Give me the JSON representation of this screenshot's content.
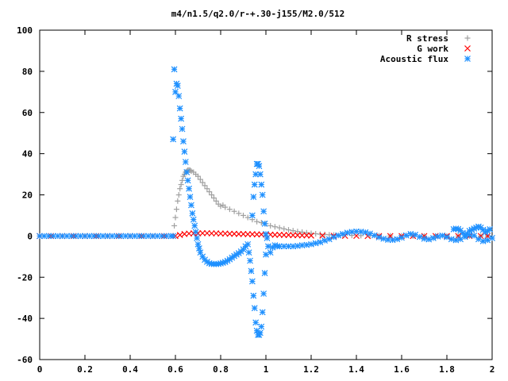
{
  "chart_data": {
    "type": "scatter",
    "title": "m4/n1.5/q2.0/r-+.30-j155/M2.0/512",
    "xlabel": "",
    "ylabel": "",
    "xlim": [
      0,
      2
    ],
    "ylim": [
      -60,
      100
    ],
    "xticks": [
      "0",
      "0.2",
      "0.4",
      "0.6",
      "0.8",
      "1",
      "1.2",
      "1.4",
      "1.6",
      "1.8",
      "2"
    ],
    "yticks": [
      "100",
      "80",
      "60",
      "40",
      "20",
      "0",
      "-20",
      "-40",
      "-60"
    ],
    "grid": false,
    "legend_position": "top-right",
    "series": [
      {
        "name": "R stress",
        "color": "#a0a0a0",
        "marker": "plus",
        "points": [
          [
            0.0,
            0
          ],
          [
            0.05,
            0
          ],
          [
            0.1,
            0
          ],
          [
            0.15,
            0
          ],
          [
            0.2,
            0
          ],
          [
            0.25,
            0
          ],
          [
            0.3,
            0
          ],
          [
            0.35,
            0
          ],
          [
            0.4,
            0
          ],
          [
            0.45,
            0
          ],
          [
            0.5,
            0
          ],
          [
            0.55,
            0
          ],
          [
            0.59,
            0
          ],
          [
            0.595,
            5
          ],
          [
            0.6,
            9
          ],
          [
            0.605,
            13
          ],
          [
            0.61,
            17
          ],
          [
            0.615,
            20
          ],
          [
            0.62,
            23
          ],
          [
            0.625,
            25
          ],
          [
            0.63,
            27
          ],
          [
            0.635,
            29
          ],
          [
            0.64,
            30
          ],
          [
            0.645,
            31
          ],
          [
            0.65,
            31.5
          ],
          [
            0.655,
            32
          ],
          [
            0.66,
            32
          ],
          [
            0.665,
            32
          ],
          [
            0.67,
            31.5
          ],
          [
            0.68,
            31
          ],
          [
            0.69,
            30
          ],
          [
            0.7,
            29
          ],
          [
            0.71,
            27.5
          ],
          [
            0.72,
            26
          ],
          [
            0.73,
            24.5
          ],
          [
            0.74,
            23
          ],
          [
            0.75,
            21.5
          ],
          [
            0.76,
            20
          ],
          [
            0.77,
            18.5
          ],
          [
            0.78,
            17
          ],
          [
            0.79,
            15.5
          ],
          [
            0.8,
            14.5
          ],
          [
            0.81,
            15
          ],
          [
            0.82,
            14
          ],
          [
            0.84,
            13
          ],
          [
            0.86,
            12
          ],
          [
            0.88,
            11
          ],
          [
            0.9,
            10
          ],
          [
            0.92,
            9
          ],
          [
            0.94,
            8
          ],
          [
            0.96,
            7
          ],
          [
            0.98,
            6.5
          ],
          [
            1.0,
            6
          ],
          [
            1.02,
            5
          ],
          [
            1.04,
            4.5
          ],
          [
            1.06,
            4
          ],
          [
            1.08,
            3.5
          ],
          [
            1.1,
            3
          ],
          [
            1.12,
            2.6
          ],
          [
            1.14,
            2.2
          ],
          [
            1.16,
            1.9
          ],
          [
            1.18,
            1.6
          ],
          [
            1.2,
            1.3
          ],
          [
            1.22,
            1.1
          ],
          [
            1.24,
            0.9
          ],
          [
            1.26,
            0.8
          ],
          [
            1.28,
            0.6
          ],
          [
            1.3,
            0.5
          ],
          [
            1.34,
            0.4
          ],
          [
            1.38,
            0.3
          ],
          [
            1.42,
            0.2
          ],
          [
            1.46,
            0.2
          ],
          [
            1.5,
            0.1
          ],
          [
            1.55,
            0.1
          ],
          [
            1.6,
            0.1
          ],
          [
            1.65,
            0
          ],
          [
            1.7,
            0
          ],
          [
            1.75,
            0
          ],
          [
            1.8,
            0
          ],
          [
            1.85,
            0
          ],
          [
            1.9,
            0
          ],
          [
            1.95,
            0
          ],
          [
            1.98,
            0
          ]
        ]
      },
      {
        "name": "G work",
        "color": "#ff0000",
        "marker": "cross",
        "points": [
          [
            0.0,
            0
          ],
          [
            0.05,
            0
          ],
          [
            0.1,
            0
          ],
          [
            0.15,
            0
          ],
          [
            0.2,
            0
          ],
          [
            0.25,
            0
          ],
          [
            0.3,
            0
          ],
          [
            0.35,
            0
          ],
          [
            0.4,
            0
          ],
          [
            0.45,
            0
          ],
          [
            0.5,
            0
          ],
          [
            0.55,
            0
          ],
          [
            0.6,
            0
          ],
          [
            0.62,
            0.5
          ],
          [
            0.64,
            1
          ],
          [
            0.66,
            1.2
          ],
          [
            0.68,
            1.3
          ],
          [
            0.7,
            1.3
          ],
          [
            0.72,
            1.4
          ],
          [
            0.74,
            1.4
          ],
          [
            0.76,
            1.3
          ],
          [
            0.78,
            1.3
          ],
          [
            0.8,
            1.2
          ],
          [
            0.82,
            1.2
          ],
          [
            0.84,
            1.1
          ],
          [
            0.86,
            1.1
          ],
          [
            0.88,
            1.0
          ],
          [
            0.9,
            1.0
          ],
          [
            0.92,
            0.9
          ],
          [
            0.94,
            0.9
          ],
          [
            0.96,
            0.8
          ],
          [
            0.98,
            0.8
          ],
          [
            1.0,
            0.7
          ],
          [
            1.02,
            0.7
          ],
          [
            1.04,
            0.6
          ],
          [
            1.06,
            0.6
          ],
          [
            1.08,
            0.5
          ],
          [
            1.1,
            0.5
          ],
          [
            1.12,
            0.4
          ],
          [
            1.14,
            0.4
          ],
          [
            1.16,
            0.3
          ],
          [
            1.18,
            0.3
          ],
          [
            1.2,
            0.2
          ],
          [
            1.25,
            0.2
          ],
          [
            1.3,
            0.1
          ],
          [
            1.35,
            0.1
          ],
          [
            1.4,
            0.1
          ],
          [
            1.45,
            0
          ],
          [
            1.5,
            0
          ],
          [
            1.55,
            0
          ],
          [
            1.6,
            0
          ],
          [
            1.65,
            0
          ],
          [
            1.7,
            0
          ],
          [
            1.75,
            0
          ],
          [
            1.8,
            0
          ],
          [
            1.85,
            0
          ],
          [
            1.9,
            0
          ],
          [
            1.95,
            0
          ],
          [
            1.98,
            0
          ]
        ]
      },
      {
        "name": "Acoustic flux",
        "color": "#1e90ff",
        "marker": "star",
        "points": [
          [
            0.0,
            0
          ],
          [
            0.02,
            0
          ],
          [
            0.04,
            0
          ],
          [
            0.06,
            0
          ],
          [
            0.08,
            0
          ],
          [
            0.1,
            0
          ],
          [
            0.12,
            0
          ],
          [
            0.14,
            0
          ],
          [
            0.16,
            0
          ],
          [
            0.18,
            0
          ],
          [
            0.2,
            0
          ],
          [
            0.22,
            0
          ],
          [
            0.24,
            0
          ],
          [
            0.26,
            0
          ],
          [
            0.28,
            0
          ],
          [
            0.3,
            0
          ],
          [
            0.32,
            0
          ],
          [
            0.34,
            0
          ],
          [
            0.36,
            0
          ],
          [
            0.38,
            0
          ],
          [
            0.4,
            0
          ],
          [
            0.42,
            0
          ],
          [
            0.44,
            0
          ],
          [
            0.46,
            0
          ],
          [
            0.48,
            0
          ],
          [
            0.5,
            0
          ],
          [
            0.52,
            0
          ],
          [
            0.54,
            0
          ],
          [
            0.56,
            0
          ],
          [
            0.58,
            0
          ],
          [
            0.59,
            0
          ],
          [
            0.59,
            47
          ],
          [
            0.595,
            81
          ],
          [
            0.6,
            70
          ],
          [
            0.605,
            74
          ],
          [
            0.61,
            73
          ],
          [
            0.615,
            68
          ],
          [
            0.62,
            62
          ],
          [
            0.625,
            57
          ],
          [
            0.63,
            52
          ],
          [
            0.635,
            46
          ],
          [
            0.64,
            41
          ],
          [
            0.645,
            36
          ],
          [
            0.65,
            31
          ],
          [
            0.655,
            27
          ],
          [
            0.66,
            23
          ],
          [
            0.665,
            19
          ],
          [
            0.67,
            15
          ],
          [
            0.675,
            11
          ],
          [
            0.68,
            8
          ],
          [
            0.685,
            5
          ],
          [
            0.69,
            2
          ],
          [
            0.695,
            -1
          ],
          [
            0.7,
            -4
          ],
          [
            0.705,
            -6
          ],
          [
            0.71,
            -8
          ],
          [
            0.72,
            -10
          ],
          [
            0.73,
            -11.5
          ],
          [
            0.74,
            -12.5
          ],
          [
            0.75,
            -13.2
          ],
          [
            0.76,
            -13.5
          ],
          [
            0.77,
            -13.6
          ],
          [
            0.78,
            -13.6
          ],
          [
            0.79,
            -13.5
          ],
          [
            0.8,
            -13.3
          ],
          [
            0.81,
            -13
          ],
          [
            0.82,
            -12.6
          ],
          [
            0.83,
            -12
          ],
          [
            0.84,
            -11.3
          ],
          [
            0.85,
            -10.5
          ],
          [
            0.86,
            -9.7
          ],
          [
            0.87,
            -9
          ],
          [
            0.88,
            -8.3
          ],
          [
            0.89,
            -7.5
          ],
          [
            0.9,
            -6.5
          ],
          [
            0.91,
            -5
          ],
          [
            0.92,
            -4
          ],
          [
            0.925,
            -8
          ],
          [
            0.93,
            -12
          ],
          [
            0.935,
            -17
          ],
          [
            0.94,
            -22
          ],
          [
            0.945,
            -29
          ],
          [
            0.95,
            -35
          ],
          [
            0.955,
            -42
          ],
          [
            0.96,
            -46
          ],
          [
            0.965,
            -48
          ],
          [
            0.97,
            -48
          ],
          [
            0.975,
            -47
          ],
          [
            0.98,
            -44
          ],
          [
            0.985,
            -37
          ],
          [
            0.99,
            -28
          ],
          [
            0.995,
            -18
          ],
          [
            1.0,
            -9
          ],
          [
            1.005,
            -1
          ],
          [
            1.01,
            -5
          ],
          [
            1.02,
            -8
          ],
          [
            1.03,
            -5.5
          ],
          [
            1.04,
            -4.5
          ],
          [
            0.94,
            10
          ],
          [
            0.945,
            19
          ],
          [
            0.95,
            25
          ],
          [
            0.955,
            30
          ],
          [
            0.96,
            35
          ],
          [
            0.965,
            35
          ],
          [
            0.97,
            34
          ],
          [
            0.975,
            30
          ],
          [
            0.98,
            25
          ],
          [
            0.985,
            20
          ],
          [
            0.99,
            12
          ],
          [
            0.995,
            6
          ],
          [
            1.0,
            1
          ],
          [
            1.05,
            -5
          ],
          [
            1.06,
            -5
          ],
          [
            1.08,
            -5
          ],
          [
            1.1,
            -5
          ],
          [
            1.12,
            -5
          ],
          [
            1.14,
            -4.8
          ],
          [
            1.16,
            -4.5
          ],
          [
            1.18,
            -4.3
          ],
          [
            1.2,
            -4
          ],
          [
            1.22,
            -3.5
          ],
          [
            1.24,
            -3
          ],
          [
            1.26,
            -2.2
          ],
          [
            1.28,
            -1.5
          ],
          [
            1.3,
            -0.5
          ],
          [
            1.32,
            0.3
          ],
          [
            1.34,
            1
          ],
          [
            1.36,
            1.6
          ],
          [
            1.38,
            2
          ],
          [
            1.4,
            2.2
          ],
          [
            1.42,
            2.1
          ],
          [
            1.44,
            1.8
          ],
          [
            1.46,
            1.2
          ],
          [
            1.48,
            0.3
          ],
          [
            1.5,
            -0.6
          ],
          [
            1.52,
            -1.3
          ],
          [
            1.54,
            -1.8
          ],
          [
            1.56,
            -1.9
          ],
          [
            1.58,
            -1.5
          ],
          [
            1.6,
            -0.8
          ],
          [
            1.62,
            0.3
          ],
          [
            1.64,
            1
          ],
          [
            1.66,
            0.6
          ],
          [
            1.68,
            -0.4
          ],
          [
            1.7,
            -1.3
          ],
          [
            1.72,
            -1.6
          ],
          [
            1.74,
            -1
          ],
          [
            1.76,
            -0.2
          ],
          [
            1.78,
            0.2
          ],
          [
            1.8,
            -0.5
          ],
          [
            1.82,
            -1.5
          ],
          [
            1.84,
            -2
          ],
          [
            1.86,
            -1.5
          ],
          [
            1.88,
            -0.4
          ],
          [
            1.9,
            0.5
          ],
          [
            1.92,
            0.2
          ],
          [
            1.94,
            -1.5
          ],
          [
            1.96,
            -2.5
          ],
          [
            1.98,
            -2
          ],
          [
            2.0,
            -1
          ],
          [
            1.83,
            3.3
          ],
          [
            1.84,
            3.6
          ],
          [
            1.85,
            3.4
          ],
          [
            1.86,
            2.7
          ],
          [
            1.87,
            1.5
          ],
          [
            1.88,
            0.5
          ],
          [
            1.89,
            1.2
          ],
          [
            1.9,
            2.5
          ],
          [
            1.91,
            3
          ],
          [
            1.92,
            3.6
          ],
          [
            1.93,
            4.1
          ],
          [
            1.94,
            4.6
          ],
          [
            1.95,
            4.1
          ],
          [
            1.96,
            3
          ],
          [
            1.97,
            1.8
          ],
          [
            1.98,
            2.5
          ],
          [
            1.99,
            3.3
          ]
        ]
      }
    ]
  }
}
